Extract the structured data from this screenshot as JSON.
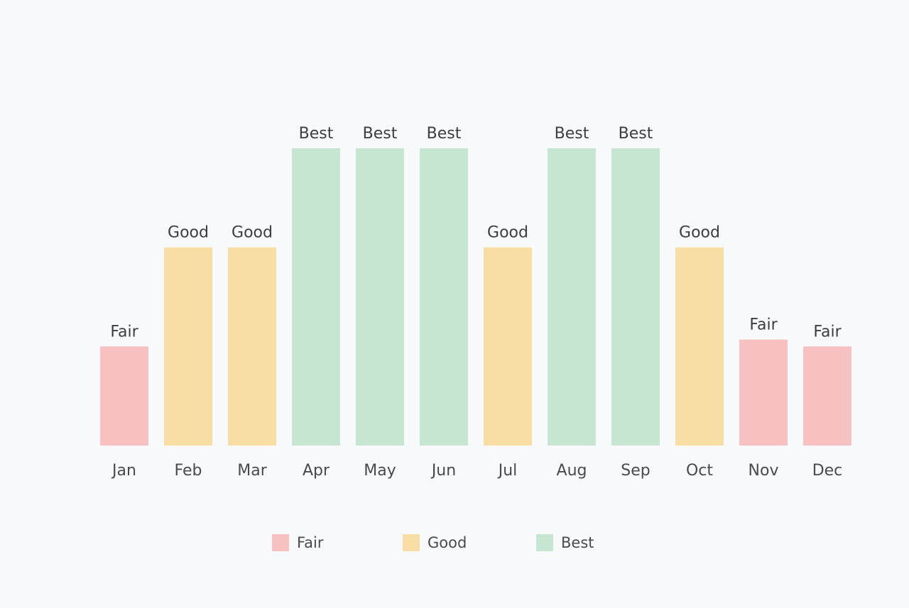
{
  "chart_data": {
    "type": "bar",
    "categories": [
      "Jan",
      "Feb",
      "Mar",
      "Apr",
      "May",
      "Jun",
      "Jul",
      "Aug",
      "Sep",
      "Oct",
      "Nov",
      "Dec"
    ],
    "values": [
      1,
      2,
      2,
      3,
      3,
      3,
      2,
      3,
      3,
      2,
      1.07,
      1
    ],
    "value_labels": [
      "Fair",
      "Good",
      "Good",
      "Best",
      "Best",
      "Best",
      "Good",
      "Best",
      "Best",
      "Good",
      "Fair",
      "Fair"
    ],
    "ylim": [
      0,
      3
    ],
    "grid": false,
    "legend": {
      "placement": "bottom-center",
      "entries": [
        {
          "label": "Fair",
          "color": "#f7c1c1"
        },
        {
          "label": "Good",
          "color": "#f8dea5"
        },
        {
          "label": "Best",
          "color": "#c6e6d2"
        }
      ]
    },
    "colors": {
      "Fair": "#f7c1c1",
      "Good": "#f8dea5",
      "Best": "#c6e6d2"
    }
  }
}
